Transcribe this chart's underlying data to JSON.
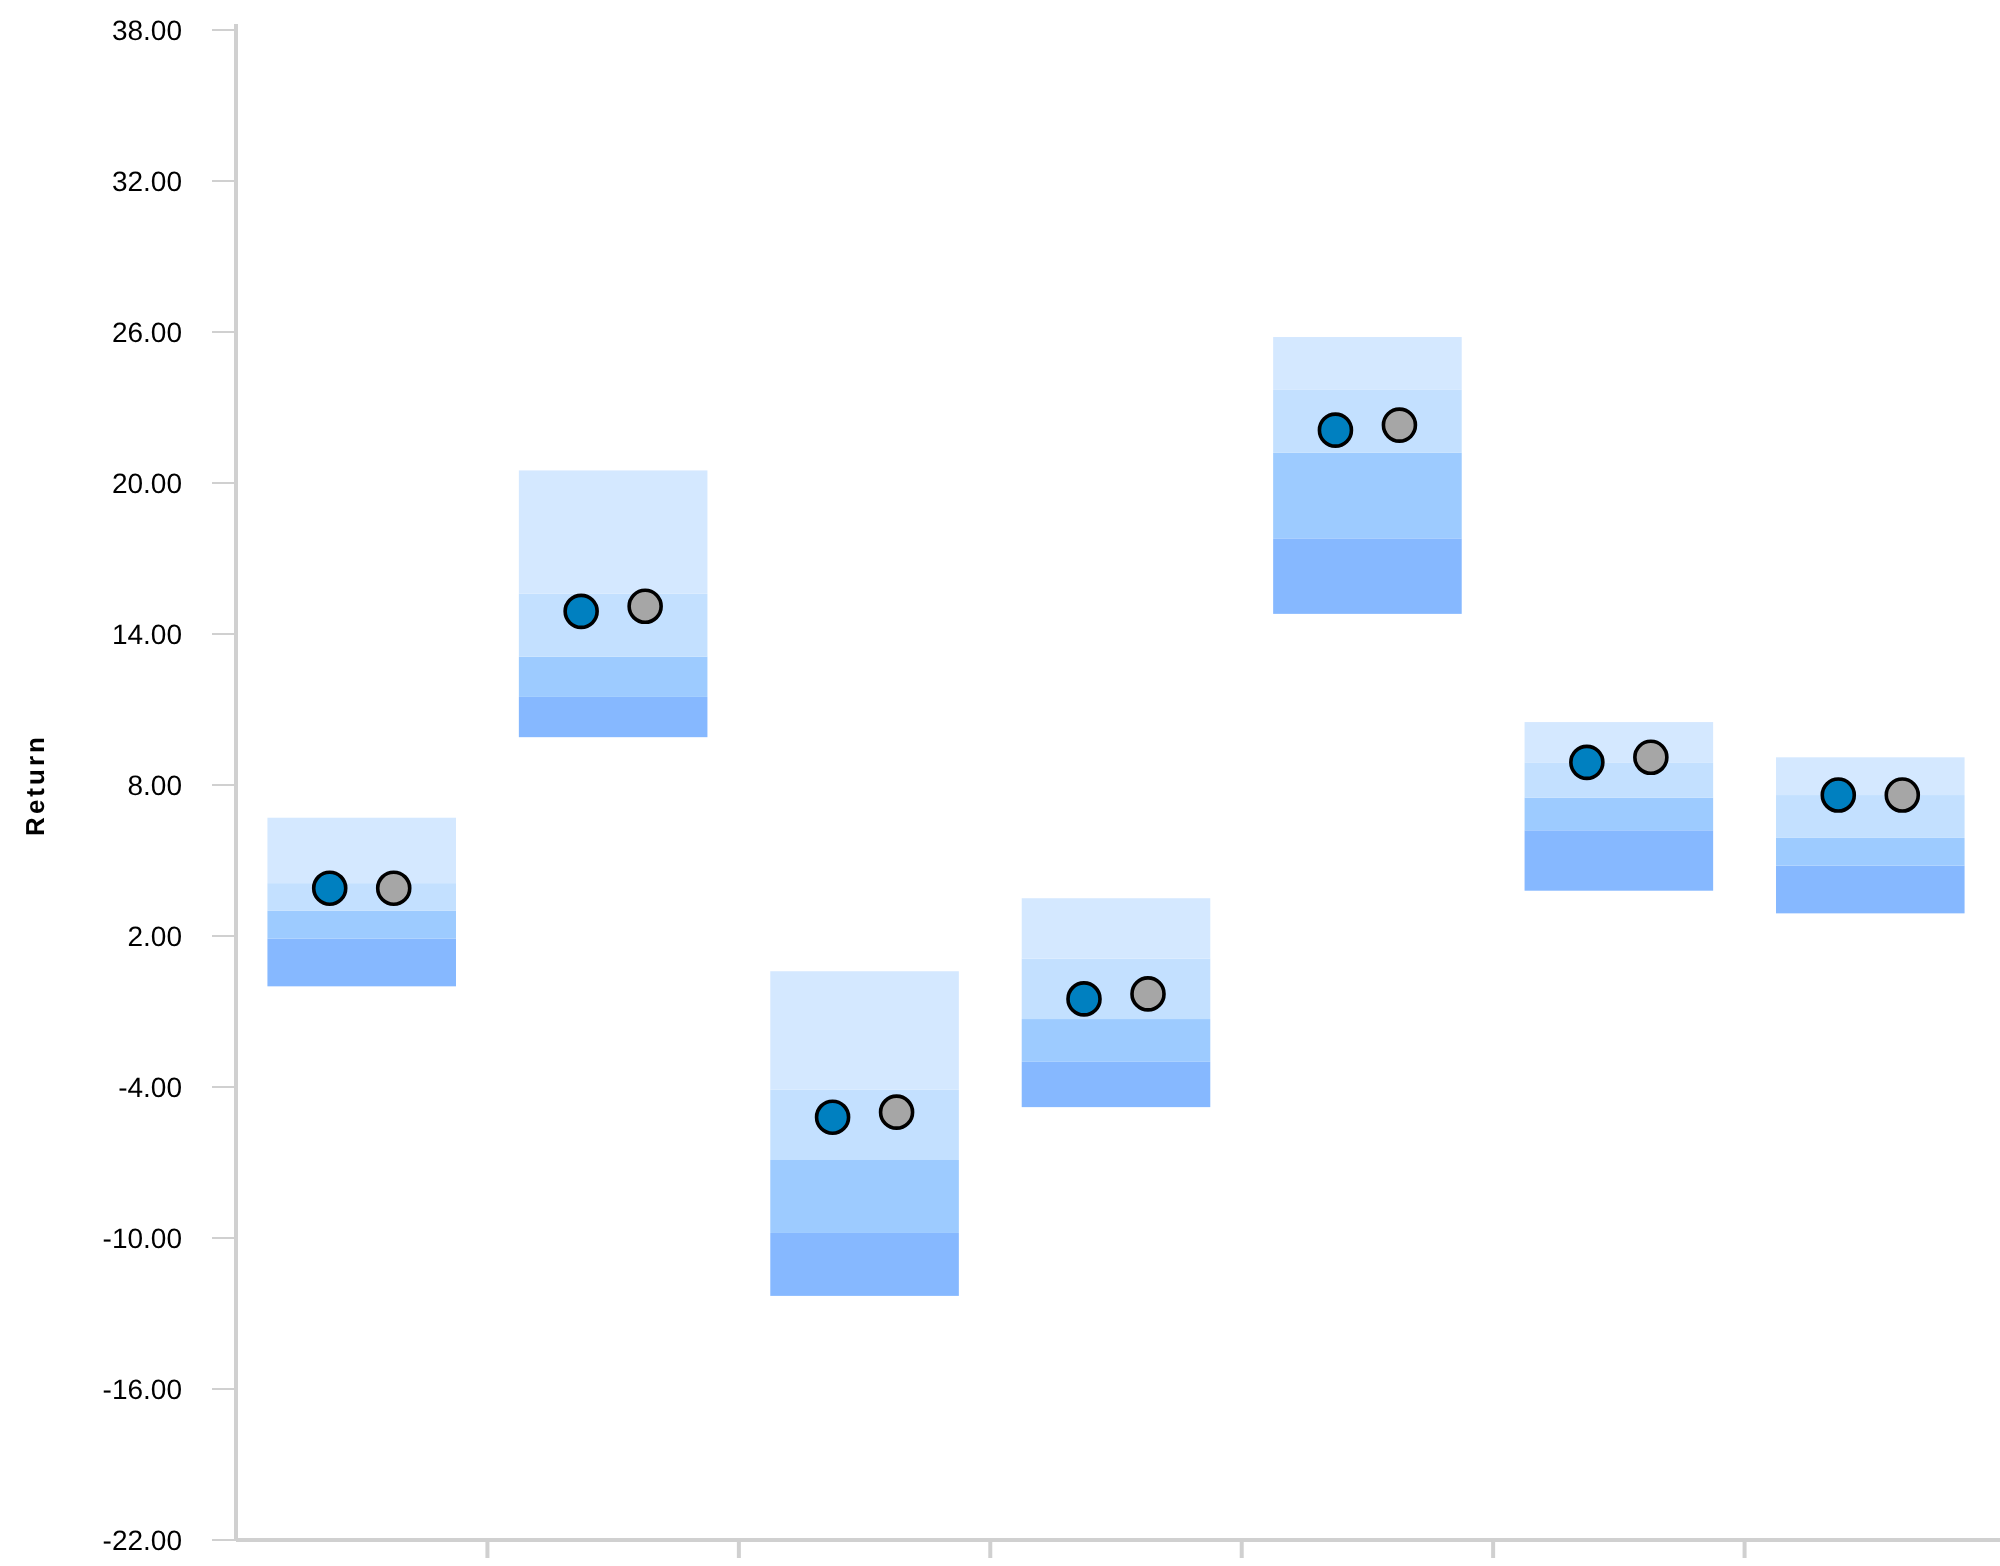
{
  "chart_data": {
    "type": "bar",
    "ylabel": "Return",
    "marker": "circle",
    "categories": [
      null,
      null,
      null,
      null,
      null,
      null,
      null
    ],
    "series": [
      {
        "color": "#86b8ff",
        "base": [
          0.0,
          9.9,
          -12.3,
          -4.8,
          14.8,
          3.8,
          2.9
        ],
        "values": [
          1.9,
          1.6,
          2.5,
          1.8,
          3.0,
          2.4,
          1.9
        ]
      },
      {
        "color": "#9dcbff",
        "base": [
          1.9,
          11.5,
          -9.8,
          -3.0,
          17.8,
          6.2,
          4.8
        ],
        "values": [
          1.1,
          1.6,
          2.9,
          1.7,
          3.4,
          1.3,
          1.1
        ]
      },
      {
        "color": "#c3e0ff",
        "base": [
          3.0,
          13.1,
          -6.9,
          -1.3,
          21.2,
          7.5,
          5.9
        ],
        "values": [
          1.1,
          2.5,
          2.8,
          2.4,
          2.5,
          1.4,
          1.7
        ]
      },
      {
        "color": "#d4e8ff",
        "base": [
          4.1,
          15.6,
          -4.1,
          1.1,
          23.7,
          8.9,
          7.6
        ],
        "values": [
          2.6,
          4.9,
          4.7,
          2.4,
          2.1,
          1.6,
          1.5
        ]
      },
      {
        "type": "scatter",
        "color": "#0080c0",
        "values": [
          3.9,
          14.9,
          -5.2,
          -0.5,
          22.1,
          8.9,
          7.6
        ]
      },
      {
        "type": "scatter",
        "color": "#a6a6a6",
        "values": [
          3.9,
          15.1,
          -5.0,
          -0.3,
          22.3,
          9.1,
          7.6
        ]
      }
    ],
    "ylim": [
      -22,
      38
    ],
    "yticks": [
      {
        "value": -22,
        "label": "-22.00"
      },
      {
        "value": -16,
        "label": "-16.00"
      },
      {
        "value": -10,
        "label": "-10.00"
      },
      {
        "value": -4,
        "label": "-4.00"
      },
      {
        "value": 2,
        "label": "2.00"
      },
      {
        "value": 8,
        "label": "8.00"
      },
      {
        "value": 14,
        "label": "14.00"
      },
      {
        "value": 20,
        "label": "20.00"
      },
      {
        "value": 26,
        "label": "26.00"
      },
      {
        "value": 32,
        "label": "32.00"
      },
      {
        "value": 38,
        "label": "38.00"
      }
    ]
  }
}
